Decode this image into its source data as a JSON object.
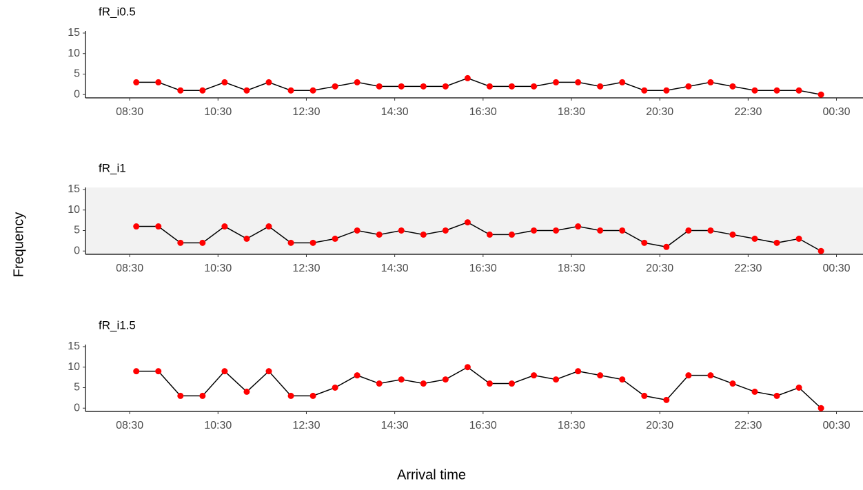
{
  "chart_data": [
    {
      "type": "line",
      "title": "fR_i0.5",
      "x": [
        8.65,
        9.15,
        9.65,
        10.15,
        10.65,
        11.15,
        11.65,
        12.15,
        12.65,
        13.15,
        13.65,
        14.15,
        14.65,
        15.15,
        15.65,
        16.15,
        16.65,
        17.15,
        17.65,
        18.15,
        18.65,
        19.15,
        19.65,
        20.15,
        20.65,
        21.15,
        21.65,
        22.15,
        22.65,
        23.15,
        23.65,
        24.15
      ],
      "values": [
        3,
        3,
        1,
        1,
        3,
        1,
        3,
        1,
        1,
        2,
        3,
        2,
        2,
        2,
        2,
        4,
        2,
        2,
        2,
        3,
        3,
        2,
        3,
        1,
        1,
        2,
        3,
        2,
        1,
        1,
        1,
        0
      ],
      "line_color": "#000000",
      "point_color": "#ff0000",
      "xlim": [
        7.5,
        25.1
      ],
      "ylim": [
        -0.8,
        15.5
      ],
      "xticks": [
        {
          "value": 8.5,
          "label": "08:30"
        },
        {
          "value": 10.5,
          "label": "10:30"
        },
        {
          "value": 12.5,
          "label": "12:30"
        },
        {
          "value": 14.5,
          "label": "14:30"
        },
        {
          "value": 16.5,
          "label": "16:30"
        },
        {
          "value": 18.5,
          "label": "18:30"
        },
        {
          "value": 20.5,
          "label": "20:30"
        },
        {
          "value": 22.5,
          "label": "22:30"
        },
        {
          "value": 24.5,
          "label": "00:30"
        }
      ],
      "yticks": [
        0,
        5,
        10,
        15
      ],
      "panel_background": "#ffffff"
    },
    {
      "type": "line",
      "title": "fR_i1",
      "x": [
        8.65,
        9.15,
        9.65,
        10.15,
        10.65,
        11.15,
        11.65,
        12.15,
        12.65,
        13.15,
        13.65,
        14.15,
        14.65,
        15.15,
        15.65,
        16.15,
        16.65,
        17.15,
        17.65,
        18.15,
        18.65,
        19.15,
        19.65,
        20.15,
        20.65,
        21.15,
        21.65,
        22.15,
        22.65,
        23.15,
        23.65,
        24.15
      ],
      "values": [
        6,
        6,
        2,
        2,
        6,
        3,
        6,
        2,
        2,
        3,
        5,
        4,
        5,
        4,
        5,
        7,
        4,
        4,
        5,
        5,
        6,
        5,
        5,
        2,
        1,
        5,
        5,
        4,
        3,
        2,
        3,
        0
      ],
      "line_color": "#000000",
      "point_color": "#ff0000",
      "xlim": [
        7.5,
        25.1
      ],
      "ylim": [
        -0.8,
        15.5
      ],
      "xticks": [
        {
          "value": 8.5,
          "label": "08:30"
        },
        {
          "value": 10.5,
          "label": "10:30"
        },
        {
          "value": 12.5,
          "label": "12:30"
        },
        {
          "value": 14.5,
          "label": "14:30"
        },
        {
          "value": 16.5,
          "label": "16:30"
        },
        {
          "value": 18.5,
          "label": "18:30"
        },
        {
          "value": 20.5,
          "label": "20:30"
        },
        {
          "value": 22.5,
          "label": "22:30"
        },
        {
          "value": 24.5,
          "label": "00:30"
        }
      ],
      "yticks": [
        0,
        5,
        10,
        15
      ],
      "panel_background": "#f2f2f2"
    },
    {
      "type": "line",
      "title": "fR_i1.5",
      "x": [
        8.65,
        9.15,
        9.65,
        10.15,
        10.65,
        11.15,
        11.65,
        12.15,
        12.65,
        13.15,
        13.65,
        14.15,
        14.65,
        15.15,
        15.65,
        16.15,
        16.65,
        17.15,
        17.65,
        18.15,
        18.65,
        19.15,
        19.65,
        20.15,
        20.65,
        21.15,
        21.65,
        22.15,
        22.65,
        23.15,
        23.65,
        24.15
      ],
      "values": [
        9,
        9,
        3,
        3,
        9,
        4,
        9,
        3,
        3,
        5,
        8,
        6,
        7,
        6,
        7,
        10,
        6,
        6,
        8,
        7,
        9,
        8,
        7,
        3,
        2,
        8,
        8,
        6,
        4,
        3,
        5,
        0
      ],
      "line_color": "#000000",
      "point_color": "#ff0000",
      "xlim": [
        7.5,
        25.1
      ],
      "ylim": [
        -0.8,
        15.5
      ],
      "xticks": [
        {
          "value": 8.5,
          "label": "08:30"
        },
        {
          "value": 10.5,
          "label": "10:30"
        },
        {
          "value": 12.5,
          "label": "12:30"
        },
        {
          "value": 14.5,
          "label": "14:30"
        },
        {
          "value": 16.5,
          "label": "16:30"
        },
        {
          "value": 18.5,
          "label": "18:30"
        },
        {
          "value": 20.5,
          "label": "20:30"
        },
        {
          "value": 22.5,
          "label": "22:30"
        },
        {
          "value": 24.5,
          "label": "00:30"
        }
      ],
      "yticks": [
        0,
        5,
        10,
        15
      ],
      "panel_background": "#ffffff"
    }
  ],
  "ylabel": "Frequency",
  "xlabel": "Arrival time"
}
